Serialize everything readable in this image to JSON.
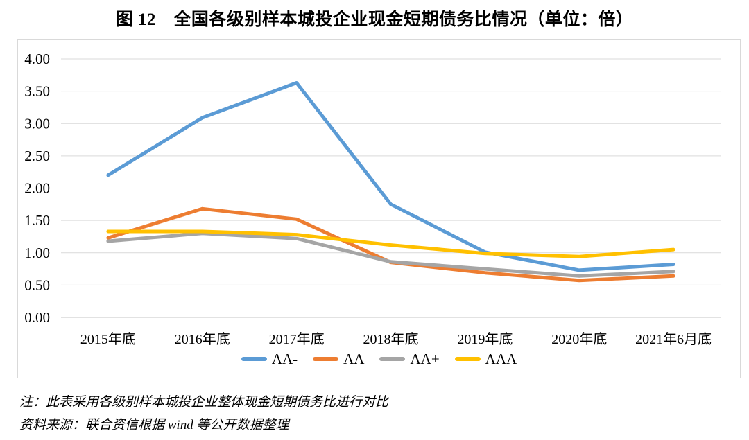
{
  "page": {
    "title": "图 12　全国各级别样本城投企业现金短期债务比情况（单位：倍）"
  },
  "chart_data": {
    "type": "line",
    "title": "图 12　全国各级别样本城投企业现金短期债务比情况（单位：倍）",
    "unit": "倍",
    "categories": [
      "2015年底",
      "2016年底",
      "2017年底",
      "2018年底",
      "2019年底",
      "2020年底",
      "2021年6月底"
    ],
    "series": [
      {
        "name": "AA-",
        "color": "#5B9BD5",
        "values": [
          2.2,
          3.09,
          3.63,
          1.75,
          1.01,
          0.73,
          0.82
        ]
      },
      {
        "name": "AA",
        "color": "#ED7D31",
        "values": [
          1.23,
          1.68,
          1.52,
          0.85,
          0.69,
          0.57,
          0.64
        ]
      },
      {
        "name": "AA+",
        "color": "#A5A5A5",
        "values": [
          1.18,
          1.3,
          1.22,
          0.86,
          0.75,
          0.64,
          0.71
        ]
      },
      {
        "name": "AAA",
        "color": "#FFC000",
        "values": [
          1.33,
          1.33,
          1.28,
          1.12,
          0.99,
          0.94,
          1.05
        ]
      }
    ],
    "ylim": [
      0,
      4
    ],
    "yticks": [
      "4.00",
      "3.50",
      "3.00",
      "2.50",
      "2.00",
      "1.50",
      "1.00",
      "0.50",
      "0.00"
    ],
    "grid": true,
    "legend_position": "bottom"
  },
  "notes": {
    "line1": "注：此表采用各级别样本城投企业整体现金短期债务比进行对比",
    "line2": "资料来源：联合资信根据 wind 等公开数据整理"
  },
  "colors": {
    "grid": "#D9D9D9",
    "axis": "#C6C6C6",
    "frame_border": "#D9D9D9",
    "text": "#000000",
    "background": "#FFFFFF"
  }
}
